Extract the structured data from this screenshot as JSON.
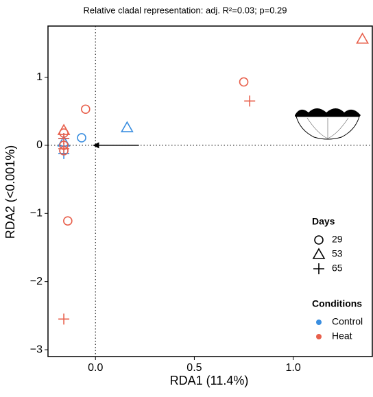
{
  "chart_data": {
    "type": "scatter",
    "title": "Relative cladal representation: adj. R²=0.03; p=0.29",
    "x_label": "RDA1 (11.4%)",
    "y_label": "RDA2 (<0.001%)",
    "xlim": [
      -0.24,
      1.4
    ],
    "ylim": [
      -3.1,
      1.75
    ],
    "xticks": [
      {
        "value": 0,
        "label": "0.0"
      },
      0.5,
      {
        "value": 1,
        "label": "1.0"
      }
    ],
    "yticks": [
      {
        "value": -3,
        "label": "−3"
      },
      {
        "value": -2,
        "label": "−2"
      },
      {
        "value": -1,
        "label": "−1"
      },
      0,
      1
    ],
    "reference_x": 0,
    "reference_y": 0,
    "arrow": {
      "x": [
        0.22,
        -0.01
      ],
      "y": [
        0,
        0
      ]
    },
    "days_title": "Days",
    "days": [
      29,
      53,
      65
    ],
    "markers": [
      "circle",
      "triangle",
      "plus"
    ],
    "conditions_title": "Conditions",
    "series": [
      {
        "name": "Control",
        "color": "#3a8ee0",
        "x": [
          0.16,
          -0.07,
          -0.16,
          -0.16,
          -0.16,
          -0.16
        ],
        "values": [
          0.26,
          0.11,
          0.1,
          0.05,
          -0.12,
          -0.08
        ],
        "days": [
          53,
          29,
          65,
          53,
          65,
          29
        ]
      },
      {
        "name": "Heat",
        "color": "#e8604c",
        "x": [
          0.75,
          1.35,
          0.78,
          -0.05,
          -0.14,
          -0.16,
          -0.16,
          -0.16,
          -0.16,
          -0.16,
          -0.16,
          -0.16
        ],
        "values": [
          0.93,
          1.56,
          0.65,
          0.53,
          -1.11,
          -2.55,
          0.22,
          0.18,
          0.0,
          0.1,
          -0.08,
          -0.05
        ],
        "days": [
          29,
          53,
          65,
          29,
          29,
          65,
          53,
          29,
          29,
          65,
          29,
          65
        ]
      }
    ]
  }
}
